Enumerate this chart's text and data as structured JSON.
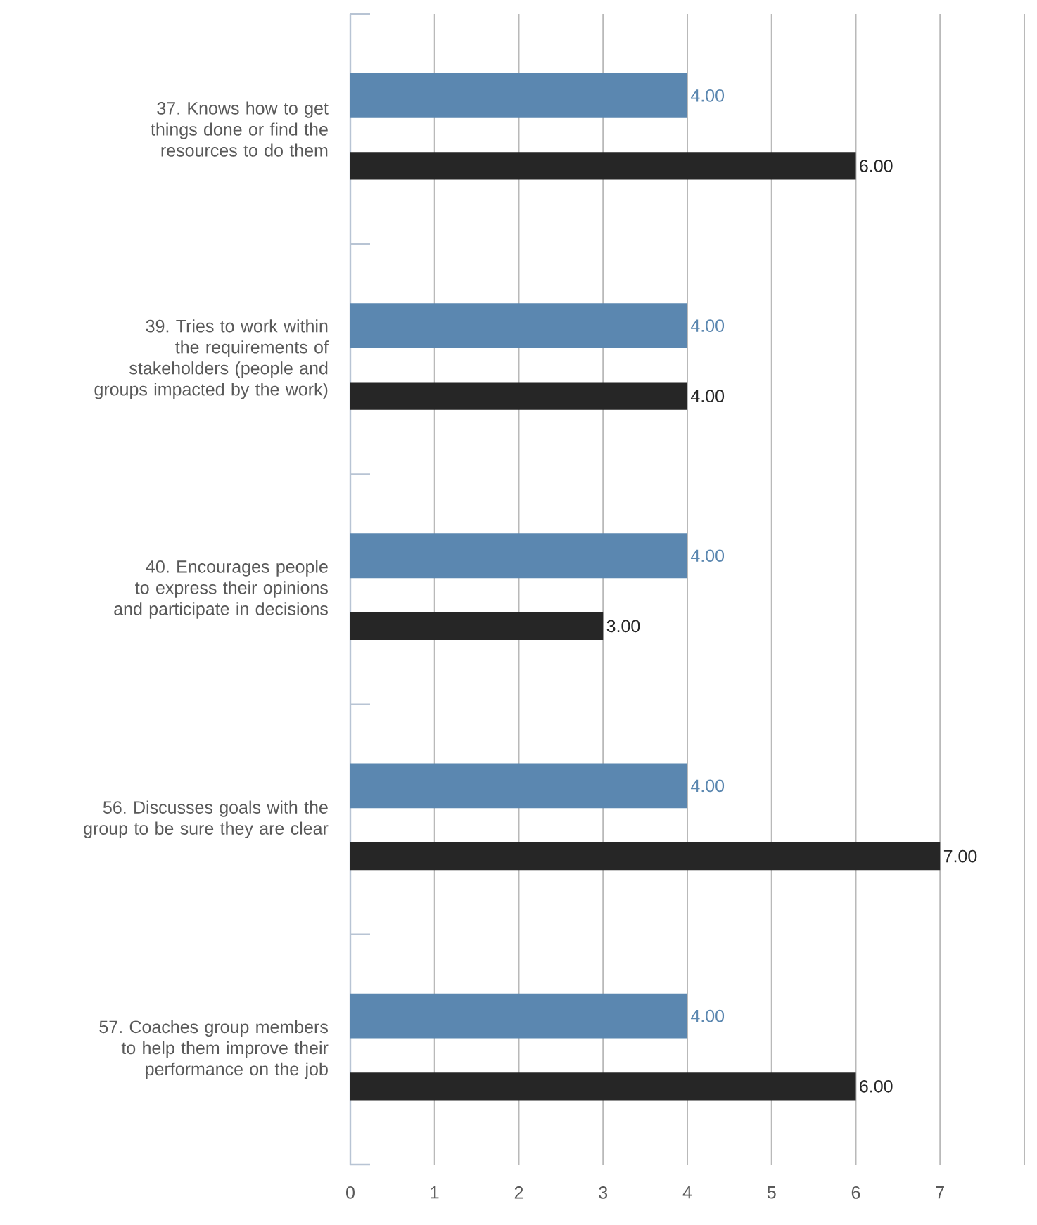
{
  "chart_data": {
    "type": "bar",
    "orientation": "horizontal",
    "categories": [
      "37. Knows how to get things done or find the resources to do them",
      "39. Tries to work within the requirements of stakeholders (people and groups impacted by the work)",
      "40. Encourages people to express their opinions and participate in decisions",
      "56. Discusses goals with the group to be sure they are clear",
      "57. Coaches group members to help them improve their performance on the job"
    ],
    "series": [
      {
        "color": "#5b87b0",
        "values": [
          4,
          4,
          4,
          4,
          4
        ],
        "value_labels": [
          "4.00",
          "4.00",
          "4.00",
          "4.00",
          "4.00"
        ]
      },
      {
        "color": "#262626",
        "values": [
          6,
          4,
          3,
          7,
          6
        ],
        "value_labels": [
          "6.00",
          "4.00",
          "3.00",
          "7.00",
          "6.00"
        ]
      }
    ],
    "xlim": [
      0,
      8
    ],
    "xticks": [
      0,
      1,
      2,
      3,
      4,
      5,
      6,
      7,
      {
        "value": 8,
        "label": null
      }
    ],
    "grid": "x"
  }
}
